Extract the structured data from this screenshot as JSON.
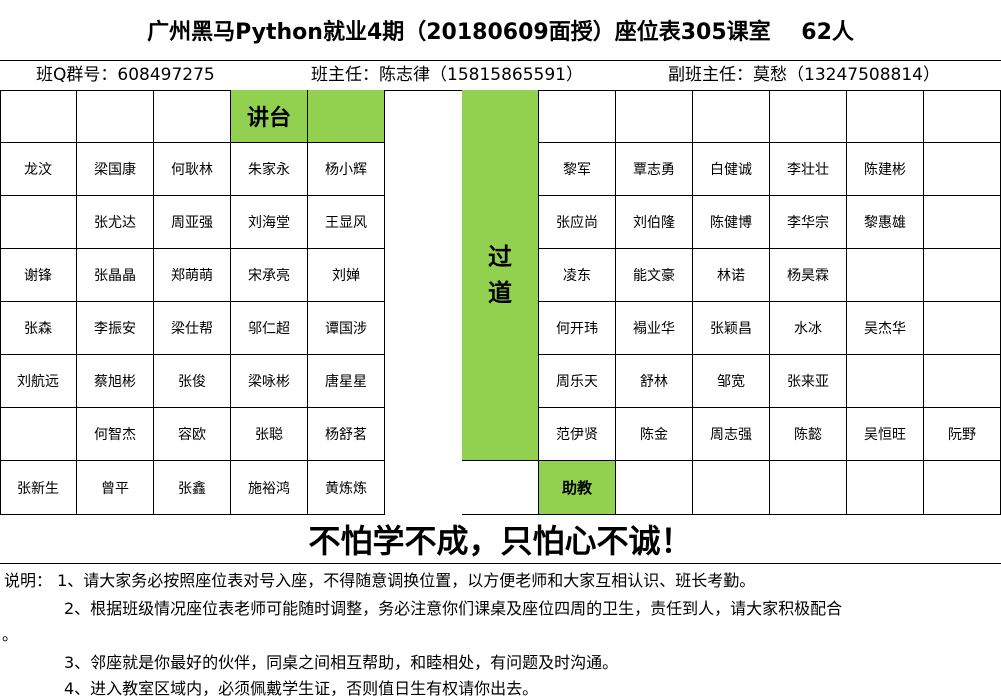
{
  "title": "广州黑马Python就业4期（20180609面授）座位表305课室    62人",
  "info": {
    "qq_group": "班Q群号：608497275",
    "teacher": "班主任：陈志律（15815865591）",
    "assistant_teacher": "副班主任：莫愁（13247508814）"
  },
  "labels": {
    "podium": "讲台",
    "aisle_1": "过",
    "aisle_2": "道",
    "teaching_assistant": "助教"
  },
  "seats": {
    "left": [
      [
        "",
        "",
        "",
        "",
        ""
      ],
      [
        "龙汶",
        "梁国康",
        "何耿林",
        "朱家永",
        "杨小辉"
      ],
      [
        "",
        "张尤达",
        "周亚强",
        "刘海堂",
        "王显风"
      ],
      [
        "谢锋",
        "张晶晶",
        "郑萌萌",
        "宋承亮",
        "刘婵"
      ],
      [
        "张森",
        "李振安",
        "梁仕帮",
        "邬仁超",
        "谭国涉"
      ],
      [
        "刘航远",
        "蔡旭彬",
        "张俊",
        "梁咏彬",
        "唐星星"
      ],
      [
        "",
        "何智杰",
        "容欧",
        "张聪",
        "杨舒茗"
      ],
      [
        "张新生",
        "曾平",
        "张鑫",
        "施裕鸿",
        "黄炼炼"
      ]
    ],
    "right": [
      [
        "",
        "",
        "",
        "",
        "",
        ""
      ],
      [
        "黎军",
        "覃志勇",
        "白健诚",
        "李壮壮",
        "陈建彬",
        ""
      ],
      [
        "张应尚",
        "刘伯隆",
        "陈健博",
        "李华宗",
        "黎惠雄",
        ""
      ],
      [
        "凌东",
        "能文豪",
        "林诺",
        "杨昊霖",
        "",
        ""
      ],
      [
        "何开玮",
        "褟业华",
        "张颖昌",
        "水冰",
        "吴杰华",
        ""
      ],
      [
        "周乐天",
        "舒林",
        "邹宽",
        "张来亚",
        "",
        ""
      ],
      [
        "范伊贤",
        "陈金",
        "周志强",
        "陈懿",
        "吴恒旺",
        "阮野"
      ],
      [
        "",
        "",
        "",
        "",
        "",
        ""
      ]
    ]
  },
  "motto": "不怕学不成，只怕心不诚！",
  "notes": [
    "说明： 1、请大家务必按照座位表对号入座，不得随意调换位置，以方便老师和大家互相认识、班长考勤。",
    "2、根据班级情况座位表老师可能随时调整，务必注意你们课桌及座位四周的卫生，责任到人，请大家积极配合",
    "。",
    "3、邻座就是你最好的伙伴，同桌之间相互帮助，和睦相处，有问题及时沟通。",
    "4、进入教室区域内，必须佩戴学生证，否则值日生有权请你出去。"
  ],
  "colors": {
    "highlight_green": "#92d050"
  }
}
